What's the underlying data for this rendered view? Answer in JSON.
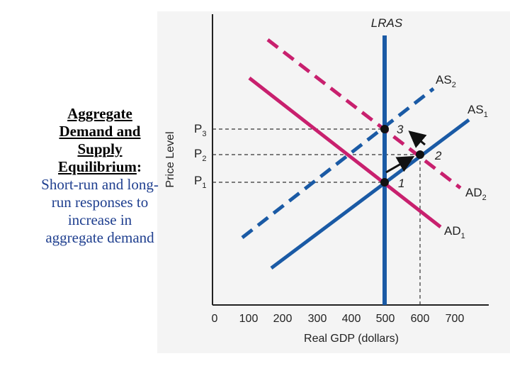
{
  "caption": {
    "title": "Aggregate Demand and Supply Equilibrium",
    "colon": ":",
    "description": "Short-run and long-run responses to increase in aggregate demand"
  },
  "colors": {
    "supply_blue": "#1a5aa5",
    "demand_magenta": "#c8206e",
    "axis": "#222222",
    "caption_blue": "#1f3f8f"
  },
  "chart_data": {
    "type": "line",
    "xlabel": "Real GDP (dollars)",
    "ylabel": "Price Level",
    "x_ticks": [
      "0",
      "100",
      "200",
      "300",
      "400",
      "500",
      "600",
      "700"
    ],
    "y_ticks": [
      "P1",
      "P2",
      "P3"
    ],
    "y_levels": {
      "P1": 1,
      "P2": 2,
      "P3": 3
    },
    "curves": [
      {
        "name": "LRAS",
        "style": "solid",
        "color": "blue"
      },
      {
        "name": "AS1",
        "style": "solid",
        "color": "blue"
      },
      {
        "name": "AS2",
        "style": "dashed",
        "color": "blue"
      },
      {
        "name": "AD1",
        "style": "solid",
        "color": "magenta"
      },
      {
        "name": "AD2",
        "style": "dashed",
        "color": "magenta"
      }
    ],
    "equilibria": [
      {
        "label": "1",
        "x": 500,
        "price": "P1"
      },
      {
        "label": "2",
        "x": 600,
        "price": "P2"
      },
      {
        "label": "3",
        "x": 500,
        "price": "P3"
      }
    ],
    "arrows": [
      {
        "from": "1",
        "to": "2"
      },
      {
        "from": "2",
        "to": "3"
      }
    ]
  }
}
